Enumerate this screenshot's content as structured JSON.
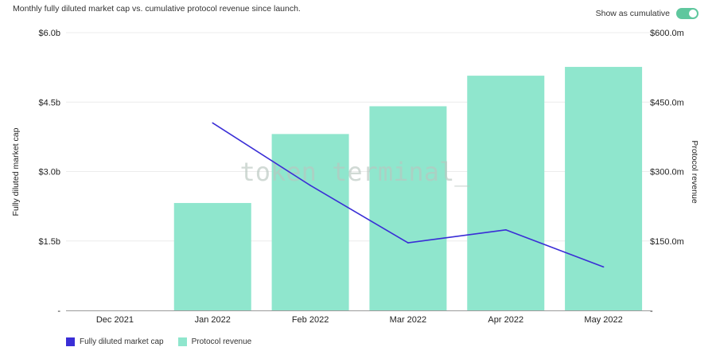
{
  "header": {
    "subtitle": "Monthly fully diluted market cap vs. cumulative protocol revenue since launch.",
    "toggle_label": "Show as cumulative",
    "toggle_on": true
  },
  "watermark": "token terminal_",
  "colors": {
    "bar": "#8fe6cd",
    "line": "#3a2ed6",
    "toggle": "#5fc79e",
    "grid": "#ececec",
    "axis": "#9a9a9a"
  },
  "chart_data": {
    "type": "bar",
    "categories": [
      "Dec 2021",
      "Jan 2022",
      "Feb 2022",
      "Mar 2022",
      "Apr 2022",
      "May 2022"
    ],
    "series": [
      {
        "name": "Protocol revenue",
        "kind": "bar",
        "axis": "right",
        "values": [
          0,
          232,
          381,
          441,
          507,
          526
        ]
      },
      {
        "name": "Fully diluted market cap",
        "kind": "line",
        "axis": "left",
        "values": [
          null,
          4.05,
          2.7,
          1.46,
          1.74,
          0.94
        ]
      }
    ],
    "yleft": {
      "label": "Fully diluted market cap",
      "ylim": [
        0,
        6.0
      ],
      "ticks": [
        0,
        1.5,
        3.0,
        4.5,
        6.0
      ],
      "tick_labels": [
        "-",
        "$1.5b",
        "$3.0b",
        "$4.5b",
        "$6.0b"
      ]
    },
    "yright": {
      "label": "Protocol revenue",
      "ylim": [
        0,
        600
      ],
      "ticks": [
        0,
        150,
        300,
        450,
        600
      ],
      "tick_labels": [
        "-",
        "$150.0m",
        "$300.0m",
        "$450.0m",
        "$600.0m"
      ]
    },
    "grid": true,
    "legend": "bottom-left"
  }
}
